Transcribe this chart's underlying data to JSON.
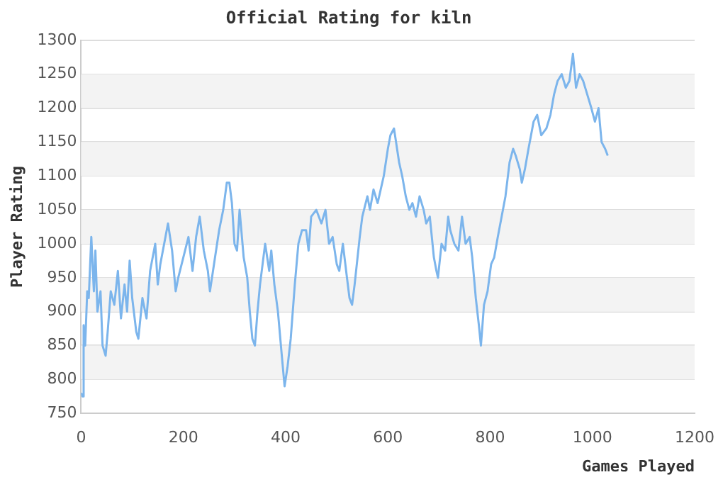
{
  "chart_data": {
    "type": "line",
    "title": "Official Rating for kiln",
    "xlabel": "Games Played",
    "ylabel": "Player Rating",
    "xlim": [
      0,
      1200
    ],
    "xticks": [
      0,
      200,
      400,
      600,
      800,
      1000,
      1200
    ],
    "ylim": [
      750,
      1300
    ],
    "yticks": [
      750,
      800,
      850,
      900,
      950,
      1000,
      1050,
      1100,
      1150,
      1200,
      1250,
      1300
    ],
    "grid": "y",
    "legend": false,
    "marker": "none",
    "line_style": "solid",
    "x": [
      0,
      3,
      5,
      8,
      12,
      15,
      20,
      25,
      28,
      32,
      38,
      42,
      48,
      52,
      58,
      65,
      72,
      78,
      85,
      90,
      95,
      100,
      108,
      112,
      120,
      128,
      135,
      145,
      150,
      155,
      160,
      165,
      170,
      178,
      185,
      190,
      200,
      210,
      218,
      225,
      232,
      240,
      248,
      252,
      258,
      262,
      270,
      278,
      285,
      290,
      295,
      300,
      305,
      310,
      318,
      325,
      330,
      335,
      340,
      345,
      350,
      355,
      360,
      368,
      372,
      378,
      385,
      392,
      398,
      404,
      410,
      418,
      425,
      432,
      440,
      445,
      450,
      460,
      470,
      478,
      485,
      492,
      500,
      505,
      512,
      520,
      525,
      530,
      535,
      545,
      550,
      560,
      565,
      572,
      580,
      586,
      592,
      600,
      605,
      612,
      618,
      622,
      628,
      635,
      642,
      648,
      655,
      662,
      670,
      675,
      682,
      690,
      695,
      698,
      705,
      712,
      718,
      722,
      730,
      738,
      745,
      752,
      760,
      765,
      772,
      778,
      782,
      788,
      795,
      802,
      808,
      815,
      820,
      830,
      838,
      845,
      850,
      858,
      862,
      868,
      875,
      885,
      892,
      900,
      910,
      918,
      925,
      932,
      940,
      948,
      955,
      962,
      968,
      975,
      982,
      990,
      998,
      1005,
      1012,
      1018,
      1025,
      1030
    ],
    "series": [
      {
        "color": "#7cb5ec",
        "values": [
          780,
          775,
          880,
          850,
          930,
          920,
          1010,
          930,
          990,
          900,
          930,
          850,
          835,
          870,
          930,
          910,
          960,
          890,
          940,
          900,
          975,
          920,
          870,
          860,
          920,
          890,
          960,
          1000,
          940,
          970,
          990,
          1010,
          1030,
          990,
          930,
          950,
          980,
          1010,
          960,
          1010,
          1040,
          990,
          960,
          930,
          960,
          980,
          1020,
          1050,
          1090,
          1090,
          1060,
          1000,
          990,
          1050,
          980,
          950,
          900,
          860,
          850,
          900,
          940,
          970,
          1000,
          960,
          990,
          940,
          900,
          840,
          790,
          820,
          860,
          940,
          1000,
          1020,
          1020,
          990,
          1040,
          1050,
          1030,
          1050,
          1000,
          1010,
          970,
          960,
          1000,
          950,
          920,
          910,
          940,
          1010,
          1040,
          1070,
          1050,
          1080,
          1060,
          1080,
          1100,
          1140,
          1160,
          1170,
          1140,
          1120,
          1100,
          1070,
          1050,
          1060,
          1040,
          1070,
          1050,
          1030,
          1040,
          980,
          960,
          950,
          1000,
          990,
          1040,
          1020,
          1000,
          990,
          1040,
          1000,
          1010,
          980,
          920,
          880,
          850,
          910,
          930,
          970,
          980,
          1010,
          1030,
          1070,
          1120,
          1140,
          1130,
          1110,
          1090,
          1110,
          1140,
          1180,
          1190,
          1160,
          1170,
          1190,
          1220,
          1240,
          1250,
          1230,
          1240,
          1280,
          1230,
          1250,
          1240,
          1220,
          1200,
          1180,
          1200,
          1150,
          1140,
          1130
        ]
      }
    ]
  }
}
